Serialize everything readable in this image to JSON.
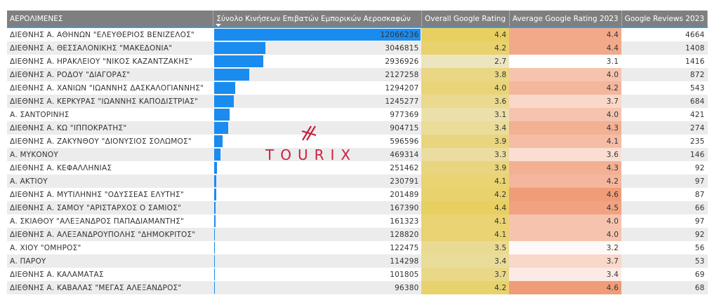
{
  "columns": [
    "ΑΕΡΟΛΙΜΕΝΕΣ",
    "Σύνολο Κινήσεων Επιβατών Εμπορικών Αεροσκαφών",
    "Overall Google Rating",
    "Average Google Rating 2023",
    "Google Reviews 2023"
  ],
  "logo_text": "TOURIX",
  "colors": {
    "bar": "#1a8cf0",
    "header": "#7f7f7f",
    "overall_high": "#e8cf62",
    "overall_low": "#ece5c0",
    "avg_high": "#f09c78",
    "avg_low": "#ffffff"
  },
  "rows": [
    {
      "name": "ΔΙΕΘΝΗΣ Α. ΑΘΗΝΩΝ \"ΕΛΕΥΘΕΡΙΟΣ ΒΕΝΙΖΕΛΟΣ\"",
      "passengers": "12066236",
      "overall": "4.4",
      "avg": "4.4",
      "reviews": "4664"
    },
    {
      "name": "ΔΙΕΘΝΗΣ Α. ΘΕΣΣΑΛΟΝΙΚΗΣ \"ΜΑΚΕΔΟΝΙΑ\"",
      "passengers": "3046815",
      "overall": "4.2",
      "avg": "4.4",
      "reviews": "1408"
    },
    {
      "name": "ΔΙΕΘΝΗΣ Α. ΗΡΑΚΛΕΙΟΥ \"ΝΙΚΟΣ ΚΑΖΑΝΤΖΑΚΗΣ\"",
      "passengers": "2936926",
      "overall": "2.7",
      "avg": "3.1",
      "reviews": "1416"
    },
    {
      "name": "ΔΙΕΘΝΗΣ Α. ΡΟΔΟΥ \"ΔΙΑΓΟΡΑΣ\"",
      "passengers": "2127258",
      "overall": "3.8",
      "avg": "4.0",
      "reviews": "872"
    },
    {
      "name": "ΔΙΕΘΝΗΣ Α. ΧΑΝΙΩΝ \"ΙΩΑΝΝΗΣ ΔΑΣΚΑΛΟΓΙΑΝΝΗΣ\"",
      "passengers": "1294207",
      "overall": "4.0",
      "avg": "4.2",
      "reviews": "543"
    },
    {
      "name": "ΔΙΕΘΝΗΣ Α. ΚΕΡΚΥΡΑΣ \"ΙΩΑΝΝΗΣ ΚΑΠΟΔΙΣΤΡΙΑΣ\"",
      "passengers": "1245277",
      "overall": "3.6",
      "avg": "3.7",
      "reviews": "684"
    },
    {
      "name": "Α. ΣΑΝΤΟΡΙΝΗΣ",
      "passengers": "977369",
      "overall": "3.1",
      "avg": "4.0",
      "reviews": "421"
    },
    {
      "name": "ΔΙΕΘΝΗΣ Α. ΚΩ \"ΙΠΠΟΚΡΑΤΗΣ\"",
      "passengers": "904715",
      "overall": "3.4",
      "avg": "4.3",
      "reviews": "274"
    },
    {
      "name": "ΔΙΕΘΝΗΣ Α. ΖΑΚΥΝΘΟΥ \"ΔΙΟΝΥΣΙΟΣ ΣΟΛΩΜΟΣ\"",
      "passengers": "596596",
      "overall": "3.9",
      "avg": "4.1",
      "reviews": "235"
    },
    {
      "name": "Α. ΜΥΚΟΝΟΥ",
      "passengers": "469314",
      "overall": "3.3",
      "avg": "3.6",
      "reviews": "146"
    },
    {
      "name": "ΔΙΕΘΝΗΣ Α. ΚΕΦΑΛΛΗΝΙΑΣ",
      "passengers": "251462",
      "overall": "3.9",
      "avg": "4.3",
      "reviews": "92"
    },
    {
      "name": "Α. ΑΚΤΙΟΥ",
      "passengers": "230791",
      "overall": "4.1",
      "avg": "4.2",
      "reviews": "97"
    },
    {
      "name": "ΔΙΕΘΝΗΣ Α. ΜΥΤΙΛΗΝΗΣ \"ΟΔΥΣΣΕΑΣ ΕΛΥΤΗΣ\"",
      "passengers": "201489",
      "overall": "4.2",
      "avg": "4.6",
      "reviews": "87"
    },
    {
      "name": "ΔΙΕΘΝΗΣ Α. ΣΑΜΟΥ \"ΑΡΙΣΤΑΡΧΟΣ Ο ΣΑΜΙΟΣ\"",
      "passengers": "167390",
      "overall": "4.4",
      "avg": "4.5",
      "reviews": "66"
    },
    {
      "name": "Α. ΣΚΙΑΘΟΥ \"ΑΛΕΞΑΝΔΡΟΣ ΠΑΠΑΔΙΑΜΑΝΤΗΣ\"",
      "passengers": "161323",
      "overall": "4.1",
      "avg": "4.0",
      "reviews": "97"
    },
    {
      "name": "ΔΙΕΘΝΗΣ Α. ΑΛΕΞΑΝΔΡΟΥΠΟΛΗΣ \"ΔΗΜΟΚΡΙΤΟΣ\"",
      "passengers": "128820",
      "overall": "4.1",
      "avg": "4.0",
      "reviews": "92"
    },
    {
      "name": "Α. ΧΙΟΥ \"ΟΜΗΡΟΣ\"",
      "passengers": "122475",
      "overall": "3.5",
      "avg": "3.2",
      "reviews": "56"
    },
    {
      "name": "Α. ΠΑΡΟΥ",
      "passengers": "114298",
      "overall": "3.4",
      "avg": "3.7",
      "reviews": "53"
    },
    {
      "name": "ΔΙΕΘΝΗΣ Α. ΚΑΛΑΜΑΤΑΣ",
      "passengers": "101805",
      "overall": "3.7",
      "avg": "3.4",
      "reviews": "69"
    },
    {
      "name": "ΔΙΕΘΝΗΣ Α. ΚΑΒΑΛΑΣ \"ΜΕΓΑΣ ΑΛΕΞΑΝΔΡΟΣ\"",
      "passengers": "96380",
      "overall": "4.2",
      "avg": "4.6",
      "reviews": "68"
    }
  ]
}
